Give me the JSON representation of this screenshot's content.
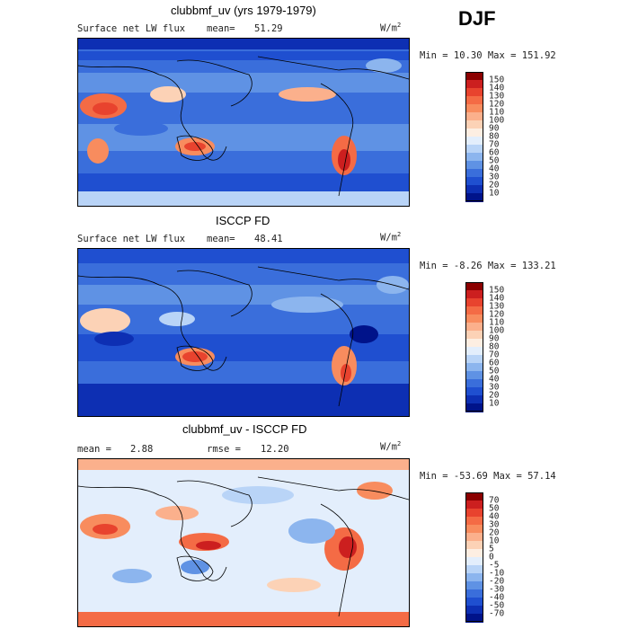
{
  "season": "DJF",
  "units_label": "W/m",
  "units_exp": "2",
  "chart_data": [
    {
      "type": "heatmap",
      "title": "clubbmf_uv (yrs 1979-1979)",
      "left_label": "Surface net LW flux",
      "stat_label": "mean=",
      "stat_value": "51.29",
      "minmax": "Min =  10.30 Max = 151.92",
      "levels": [
        "150",
        "140",
        "130",
        "120",
        "110",
        "100",
        "90",
        "80",
        "70",
        "60",
        "50",
        "40",
        "30",
        "20",
        "10"
      ],
      "colors": [
        "#8b0000",
        "#cc1f1f",
        "#e8432e",
        "#f46b45",
        "#f88c5e",
        "#fbb08c",
        "#fcd2b6",
        "#fdeee2",
        "#e3eefc",
        "#b9d4f7",
        "#8cb5ee",
        "#5f92e4",
        "#3a6edb",
        "#1f4fd0",
        "#0d2fb3",
        "#00138a"
      ]
    },
    {
      "type": "heatmap",
      "title": "ISCCP FD",
      "left_label": "Surface net LW flux",
      "stat_label": "mean=",
      "stat_value": "48.41",
      "minmax": "Min =  -8.26 Max = 133.21",
      "levels": [
        "150",
        "140",
        "130",
        "120",
        "110",
        "100",
        "90",
        "80",
        "70",
        "60",
        "50",
        "40",
        "30",
        "20",
        "10"
      ],
      "colors": [
        "#8b0000",
        "#cc1f1f",
        "#e8432e",
        "#f46b45",
        "#f88c5e",
        "#fbb08c",
        "#fcd2b6",
        "#fdeee2",
        "#e3eefc",
        "#b9d4f7",
        "#8cb5ee",
        "#5f92e4",
        "#3a6edb",
        "#1f4fd0",
        "#0d2fb3",
        "#00138a"
      ]
    },
    {
      "type": "heatmap",
      "title": "clubbmf_uv - ISCCP FD",
      "left_label": "mean =",
      "left_value": "2.88",
      "stat_label": "rmse =",
      "stat_value": "12.20",
      "minmax": "Min = -53.69 Max =  57.14",
      "levels": [
        "70",
        "50",
        "40",
        "30",
        "20",
        "10",
        "5",
        "0",
        "-5",
        "-10",
        "-20",
        "-30",
        "-40",
        "-50",
        "-70"
      ],
      "colors": [
        "#8b0000",
        "#cc1f1f",
        "#e8432e",
        "#f46b45",
        "#f88c5e",
        "#fbb08c",
        "#fcd2b6",
        "#fdeee2",
        "#e3eefc",
        "#b9d4f7",
        "#8cb5ee",
        "#5f92e4",
        "#3a6edb",
        "#1f4fd0",
        "#0d2fb3",
        "#00138a"
      ]
    }
  ]
}
